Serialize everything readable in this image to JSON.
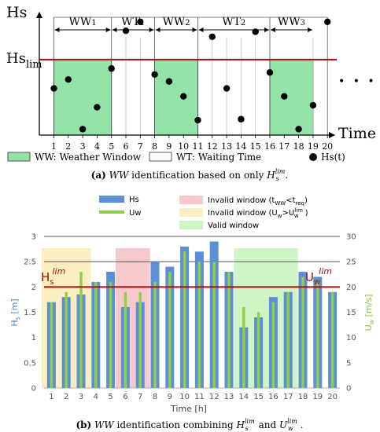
{
  "panel_a": {
    "y_axis_label": "Hs",
    "x_axis_label": "Time",
    "threshold_main": "Hs",
    "threshold_sub": "lim",
    "threshold_value": 3.8,
    "segments": [
      {
        "label": "WW1",
        "from": 1,
        "to": 5,
        "type": "weather"
      },
      {
        "label": "WT1",
        "from": 5,
        "to": 8,
        "type": "waiting"
      },
      {
        "label": "WW2",
        "from": 8,
        "to": 11,
        "type": "weather"
      },
      {
        "label": "WT2",
        "from": 11,
        "to": 16,
        "type": "waiting"
      },
      {
        "label": "WW3",
        "from": 16,
        "to": 19,
        "type": "weather"
      }
    ],
    "x_ticks": [
      "1",
      "2",
      "3",
      "4",
      "5",
      "6",
      "7",
      "8",
      "9",
      "10",
      "11",
      "12",
      "13",
      "14",
      "15",
      "16",
      "17",
      "18",
      "19",
      "20"
    ],
    "points": [
      {
        "t": 1,
        "hs": 2.35
      },
      {
        "t": 2,
        "hs": 2.8
      },
      {
        "t": 3,
        "hs": 0.3
      },
      {
        "t": 4,
        "hs": 1.4
      },
      {
        "t": 5,
        "hs": 3.35
      },
      {
        "t": 6,
        "hs": 5.25
      },
      {
        "t": 7,
        "hs": 5.7
      },
      {
        "t": 8,
        "hs": 3.05
      },
      {
        "t": 9,
        "hs": 2.7
      },
      {
        "t": 10,
        "hs": 1.95
      },
      {
        "t": 11,
        "hs": 0.75
      },
      {
        "t": 12,
        "hs": 4.95
      },
      {
        "t": 13,
        "hs": 2.35
      },
      {
        "t": 14,
        "hs": 0.8
      },
      {
        "t": 15,
        "hs": 5.2
      },
      {
        "t": 16,
        "hs": 3.15
      },
      {
        "t": 17,
        "hs": 1.95
      },
      {
        "t": 18,
        "hs": 0.3
      },
      {
        "t": 19,
        "hs": 1.5
      },
      {
        "t": 20,
        "hs": 5.7
      }
    ],
    "ellipsis": "• • •",
    "legend": {
      "weather_window": "WW: Weather Window",
      "waiting_time": "WT: Waiting Time",
      "hs_t": "Hs(t)"
    },
    "caption_prefix": "(a)",
    "caption_ww": "WW",
    "caption_text": "identification based on only",
    "caption_math_main": "H",
    "caption_math_sub": "s",
    "caption_math_sup": "lim",
    "caption_end": "."
  },
  "panel_b": {
    "legend": {
      "hs": "Hs",
      "uw": "Uw",
      "invalid_t_prefix": "Invalid window (t",
      "invalid_t_sub1": "WW",
      "invalid_t_mid": "<t",
      "invalid_t_sub2": "req",
      "invalid_t_suffix": ")",
      "invalid_u_prefix": "Invalid window (U",
      "invalid_u_sub1": "w",
      "invalid_u_mid": ">U",
      "invalid_u_sub2": "w",
      "invalid_u_sup2": "lim",
      "invalid_u_suffix": ")",
      "valid": "Valid window"
    },
    "colors": {
      "hs": "#5b8fd6",
      "uw": "#92cf45",
      "invalid_t": "#f8c9cc",
      "invalid_u": "#fbefc2",
      "valid": "#cff5c6",
      "limit": "#a01010"
    },
    "chart_data": {
      "type": "bar",
      "categories": [
        "1",
        "2",
        "3",
        "4",
        "5",
        "6",
        "7",
        "8",
        "9",
        "10",
        "11",
        "12",
        "13",
        "14",
        "15",
        "16",
        "17",
        "18",
        "19",
        "20"
      ],
      "series": [
        {
          "name": "Hs",
          "axis": "left",
          "values": [
            1.7,
            1.8,
            1.85,
            2.1,
            2.3,
            1.6,
            1.7,
            2.5,
            2.4,
            2.8,
            2.7,
            2.9,
            2.3,
            1.2,
            1.4,
            1.8,
            1.9,
            2.3,
            2.2,
            1.9
          ]
        },
        {
          "name": "Uw",
          "axis": "right",
          "values": [
            17,
            19,
            23,
            21,
            21,
            19,
            19,
            21,
            23,
            27,
            25,
            25,
            23,
            16,
            15,
            17,
            19,
            22,
            21,
            19
          ]
        }
      ],
      "left_axis": {
        "label_main": "H",
        "label_sub": "s",
        "label_unit": "[m]",
        "ylim": [
          0,
          3
        ],
        "ticks": [
          "0",
          "0.5",
          "1",
          "1.5",
          "2",
          "2.5",
          "3"
        ]
      },
      "right_axis": {
        "label_main": "U",
        "label_sub": "w",
        "label_unit": "[m/s]",
        "ylim": [
          0,
          30
        ],
        "ticks": [
          "0",
          "5",
          "10",
          "15",
          "20",
          "25",
          "30"
        ]
      },
      "xlabel": "Time [h]",
      "hs_limit": {
        "value": 2,
        "label_main": "H",
        "label_sub": "s",
        "label_sup": "lim"
      },
      "uw_limit": {
        "value": 20,
        "label_main": "U",
        "label_sub": "w",
        "label_sup": "lim"
      },
      "windows": [
        {
          "type": "invalid_u",
          "from": 1,
          "to": 3
        },
        {
          "type": "invalid_t",
          "from": 6,
          "to": 7
        },
        {
          "type": "valid",
          "from": 14,
          "to": 17
        }
      ],
      "gridlines": [
        2.5
      ]
    },
    "caption_prefix": "(b)",
    "caption_ww": "WW",
    "caption_text": "identification combining",
    "caption_math1_main": "H",
    "caption_math1_sub": "s",
    "caption_math1_sup": "lim",
    "caption_and": "and",
    "caption_math2_main": "U",
    "caption_math2_sub": "w",
    "caption_math2_sup": "lim",
    "caption_end": "."
  }
}
